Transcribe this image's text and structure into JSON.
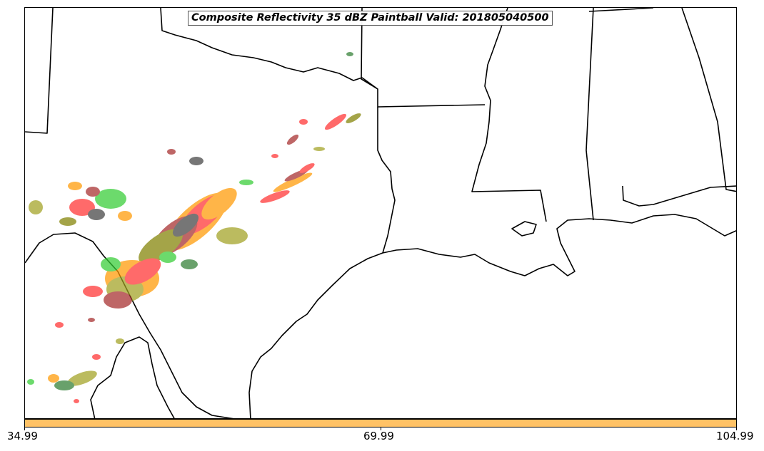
{
  "title": "Composite Reflectivity 35 dBZ Paintball Valid: 201805040500",
  "colorbar": {
    "color": "#ffc266",
    "ticks": [
      "34.99",
      "69.99",
      "104.99"
    ]
  },
  "ensemble_colors": [
    "#ff3030",
    "#33cc33",
    "#ff9900",
    "#a52a2a",
    "#808000",
    "#404040",
    "#a0a020",
    "#2e7d32"
  ]
}
